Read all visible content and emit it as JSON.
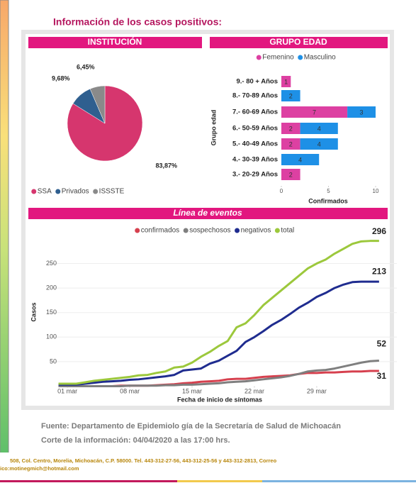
{
  "heading": "Información de los casos positivos:",
  "chart_data": [
    {
      "type": "pie",
      "title": "INSTITUCIÓN",
      "categories": [
        "SSA",
        "Privados",
        "ISSSTE"
      ],
      "values": [
        83.87,
        9.68,
        6.45
      ],
      "value_labels": [
        "83,87%",
        "9,68%",
        "6,45%"
      ],
      "colors": [
        "#d6366e",
        "#2f5f8f",
        "#8a8a8a"
      ]
    },
    {
      "type": "hbar",
      "title": "GRUPO EDAD",
      "stacked": true,
      "categories": [
        "9.- 80 + Años",
        "8.- 70-89 Años",
        "7.- 60-69 Años",
        "6.- 50-59 Años",
        "5.- 40-49 Años",
        "4.- 30-39 Años",
        "3.- 20-29 Años"
      ],
      "series": [
        {
          "name": "Femenino",
          "color": "#dd40a2",
          "values": [
            1,
            null,
            7,
            2,
            2,
            null,
            2
          ]
        },
        {
          "name": "Masculino",
          "color": "#1e90e6",
          "values": [
            null,
            2,
            3,
            4,
            4,
            4,
            null
          ]
        }
      ],
      "xlim": [
        0,
        10
      ],
      "xticks": [
        0,
        5,
        10
      ],
      "xlabel": "Confirmados",
      "ylabel": "Grupo edad"
    },
    {
      "type": "line",
      "title": "Línea de eventos",
      "x": [
        0,
        1,
        2,
        3,
        4,
        5,
        6,
        7,
        8,
        9,
        10,
        11,
        12,
        13,
        14,
        15,
        16,
        17,
        18,
        19,
        20,
        21,
        22,
        23,
        24,
        25,
        26,
        27,
        28,
        29,
        30,
        31,
        32,
        33,
        34,
        35,
        36
      ],
      "series": [
        {
          "name": "confirmados",
          "color": "#d6404e",
          "values": [
            0,
            0,
            0,
            0,
            0,
            0,
            0,
            1,
            1,
            1,
            1,
            2,
            3,
            4,
            6,
            7,
            9,
            10,
            11,
            14,
            15,
            15,
            17,
            19,
            20,
            21,
            22,
            25,
            27,
            27,
            28,
            28,
            29,
            30,
            30,
            31,
            31
          ]
        },
        {
          "name": "sospechosos",
          "color": "#7f7f7f",
          "values": [
            0,
            0,
            0,
            0,
            0,
            0,
            0,
            0,
            1,
            1,
            1,
            1,
            2,
            2,
            3,
            3,
            4,
            5,
            6,
            8,
            9,
            10,
            12,
            14,
            16,
            18,
            21,
            25,
            30,
            32,
            33,
            36,
            40,
            44,
            48,
            51,
            52
          ]
        },
        {
          "name": "negativos",
          "color": "#1f2c8f",
          "values": [
            3,
            3,
            3,
            5,
            7,
            9,
            10,
            11,
            13,
            14,
            16,
            18,
            20,
            23,
            32,
            34,
            36,
            46,
            52,
            62,
            72,
            90,
            100,
            112,
            125,
            135,
            147,
            160,
            170,
            182,
            190,
            200,
            207,
            212,
            213,
            213,
            213
          ]
        },
        {
          "name": "total",
          "color": "#9cc83c",
          "values": [
            5,
            5,
            5,
            8,
            11,
            13,
            15,
            17,
            19,
            22,
            23,
            27,
            30,
            38,
            40,
            48,
            60,
            70,
            82,
            92,
            120,
            128,
            145,
            165,
            180,
            195,
            210,
            225,
            240,
            250,
            258,
            270,
            280,
            290,
            295,
            296,
            296
          ]
        }
      ],
      "xlim": [
        -1,
        38
      ],
      "xticks": [
        {
          "value": 1,
          "label": "01 mar"
        },
        {
          "value": 8,
          "label": "08 mar"
        },
        {
          "value": 15,
          "label": "15 mar"
        },
        {
          "value": 22,
          "label": "22 mar"
        },
        {
          "value": 29,
          "label": "29 mar"
        }
      ],
      "ylim": [
        0,
        310
      ],
      "yticks": [
        50,
        100,
        150,
        200,
        250
      ],
      "xlabel": "Fecha de inicio de síntomas",
      "ylabel": "Casos"
    }
  ],
  "footer": {
    "source": "Fuente: Departamento de Epidemiolo gía de la Secretaría de Salud de Michoacán",
    "cutoff": "Corte de la información: 04/04/2020 a las 17:00 hrs.",
    "address": "508, Col. Centro, Morelia, Michoacán, C.P. 58000. Tel. 443-312-27-56, 443-312-25-56 y 443-312-2813, Correo",
    "email": "ico:motinegmich@hotmail.com"
  }
}
